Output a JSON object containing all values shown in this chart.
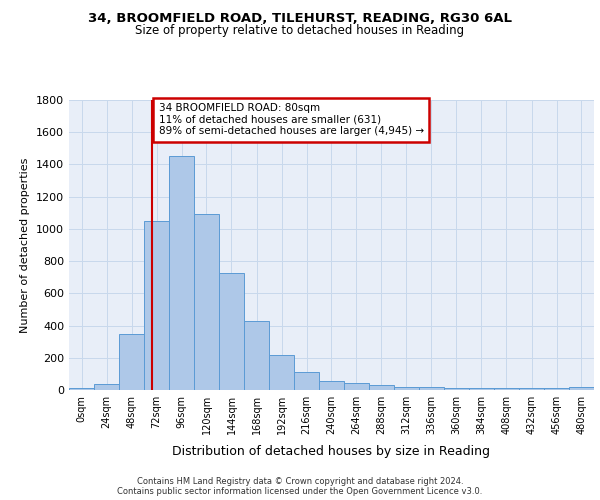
{
  "title1": "34, BROOMFIELD ROAD, TILEHURST, READING, RG30 6AL",
  "title2": "Size of property relative to detached houses in Reading",
  "xlabel": "Distribution of detached houses by size in Reading",
  "ylabel": "Number of detached properties",
  "bin_labels": [
    "0sqm",
    "24sqm",
    "48sqm",
    "72sqm",
    "96sqm",
    "120sqm",
    "144sqm",
    "168sqm",
    "192sqm",
    "216sqm",
    "240sqm",
    "264sqm",
    "288sqm",
    "312sqm",
    "336sqm",
    "360sqm",
    "384sqm",
    "408sqm",
    "432sqm",
    "456sqm",
    "480sqm"
  ],
  "bin_edges": [
    0,
    24,
    48,
    72,
    96,
    120,
    144,
    168,
    192,
    216,
    240,
    264,
    288,
    312,
    336,
    360,
    384,
    408,
    432,
    456,
    480
  ],
  "bar_heights": [
    15,
    35,
    350,
    1050,
    1450,
    1090,
    725,
    430,
    220,
    110,
    55,
    45,
    30,
    20,
    18,
    10,
    10,
    10,
    10,
    10,
    18
  ],
  "bar_color": "#aec8e8",
  "bar_edge_color": "#5b9bd5",
  "bg_color": "#e8eef8",
  "grid_color": "#c8d8ec",
  "vline_x": 80,
  "vline_color": "#cc0000",
  "annotation_line1": "34 BROOMFIELD ROAD: 80sqm",
  "annotation_line2": "11% of detached houses are smaller (631)",
  "annotation_line3": "89% of semi-detached houses are larger (4,945) →",
  "annotation_box_color": "#ffffff",
  "annotation_box_edge_color": "#cc0000",
  "ylim": [
    0,
    1800
  ],
  "yticks": [
    0,
    200,
    400,
    600,
    800,
    1000,
    1200,
    1400,
    1600,
    1800
  ],
  "footer1": "Contains HM Land Registry data © Crown copyright and database right 2024.",
  "footer2": "Contains public sector information licensed under the Open Government Licence v3.0."
}
